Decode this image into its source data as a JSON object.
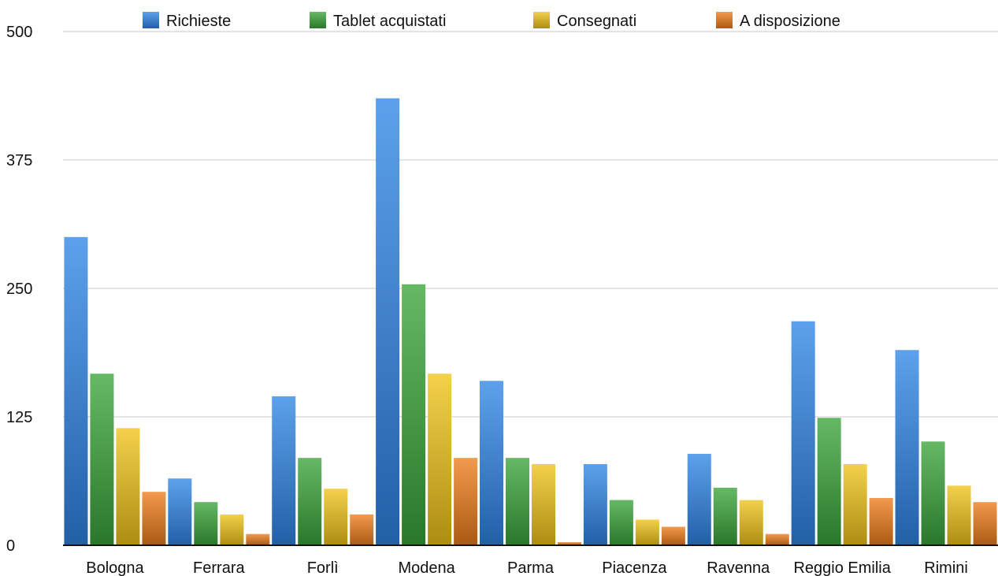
{
  "chart_data": {
    "type": "bar",
    "title": "",
    "xlabel": "",
    "ylabel": "",
    "ylim": [
      0,
      500
    ],
    "yticks": [
      0,
      125,
      250,
      375,
      500
    ],
    "grid": true,
    "legend_position": "top",
    "categories": [
      "Bologna",
      "Ferrara",
      "Forlì",
      "Modena",
      "Parma",
      "Piacenza",
      "Ravenna",
      "Reggio Emilia",
      "Rimini"
    ],
    "series": [
      {
        "name": "Richieste",
        "color": "#2f86e6",
        "values": [
          300,
          65,
          145,
          435,
          160,
          79,
          89,
          218,
          190
        ]
      },
      {
        "name": "Tablet acquistati",
        "color": "#3aa53a",
        "values": [
          167,
          42,
          85,
          254,
          85,
          44,
          56,
          124,
          101
        ]
      },
      {
        "name": "Consegnati",
        "color": "#f0c419",
        "values": [
          114,
          30,
          55,
          167,
          79,
          25,
          44,
          79,
          58
        ]
      },
      {
        "name": "A disposizione",
        "color": "#ee7d1b",
        "values": [
          52,
          11,
          30,
          85,
          3,
          18,
          11,
          46,
          42
        ]
      }
    ]
  }
}
